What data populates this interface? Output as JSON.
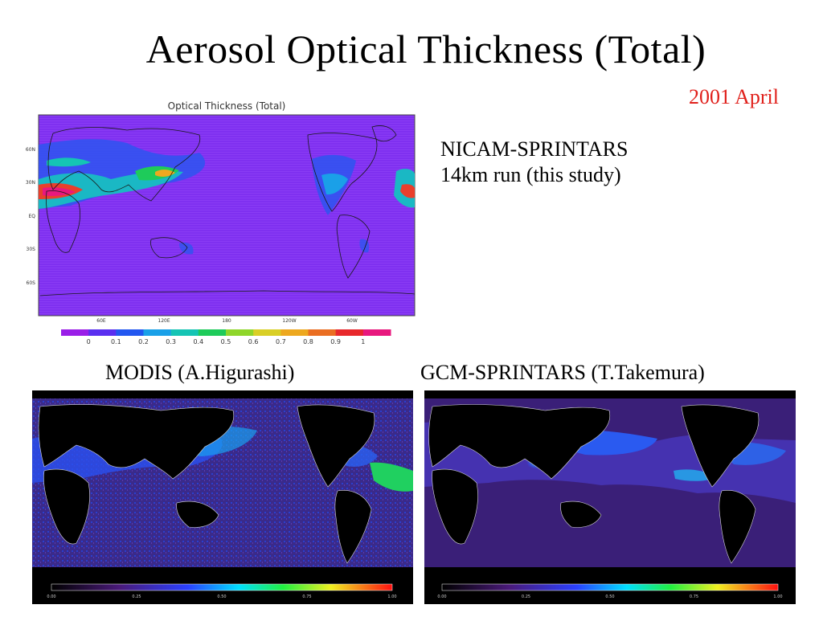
{
  "slide": {
    "title": "Aerosol Optical Thickness (Total)",
    "date": "2001 April",
    "nicam_line1": "NICAM-SPRINTARS",
    "nicam_line2": "14km run (this study)",
    "modis_caption": "MODIS (A.Higurashi)",
    "gcm_caption": "GCM-SPRINTARS (T.Takemura)"
  },
  "nicam_map": {
    "title": "Optical Thickness (Total)",
    "lat_ticks": [
      "60N",
      "30N",
      "EQ",
      "30S",
      "60S"
    ],
    "lon_ticks": [
      "60E",
      "120E",
      "180",
      "120W",
      "60W"
    ],
    "colorbar_labels": [
      "0",
      "0.1",
      "0.2",
      "0.3",
      "0.4",
      "0.5",
      "0.6",
      "0.7",
      "0.8",
      "0.9",
      "1"
    ],
    "colorbar_colors": [
      "#9a1ee8",
      "#5a2ff0",
      "#2257f0",
      "#1aa0e8",
      "#15c4b4",
      "#1ecb5a",
      "#8fd62a",
      "#d9cf26",
      "#eda81f",
      "#ea6e22",
      "#e8282c",
      "#e8187e"
    ],
    "background_color": "#7f30f0"
  },
  "modis_map": {
    "colorbar_labels": [
      "0.00",
      "0.25",
      "0.50",
      "0.75",
      "1.00"
    ]
  },
  "gcm_map": {
    "colorbar_labels": [
      "0.00",
      "0.25",
      "0.50",
      "0.75",
      "1.00"
    ]
  }
}
